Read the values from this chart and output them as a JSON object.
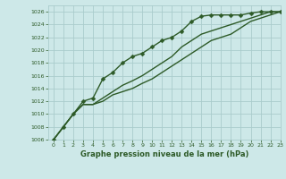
{
  "title": "Graphe pression niveau de la mer (hPa)",
  "bg_color": "#cde8e8",
  "grid_color": "#aacccc",
  "line_color": "#2d5a27",
  "xlim": [
    -0.5,
    23
  ],
  "ylim": [
    1006,
    1027
  ],
  "yticks": [
    1006,
    1008,
    1010,
    1012,
    1014,
    1016,
    1018,
    1020,
    1022,
    1024,
    1026
  ],
  "xticks": [
    0,
    1,
    2,
    3,
    4,
    5,
    6,
    7,
    8,
    9,
    10,
    11,
    12,
    13,
    14,
    15,
    16,
    17,
    18,
    19,
    20,
    21,
    22,
    23
  ],
  "series1_x": [
    0,
    1,
    2,
    3,
    4,
    5,
    6,
    7,
    8,
    9,
    10,
    11,
    12,
    13,
    14,
    15,
    16,
    17,
    18,
    19,
    20,
    21,
    22,
    23
  ],
  "series1_y": [
    1006,
    1008,
    1010,
    1012,
    1012.5,
    1015.5,
    1016.5,
    1018,
    1019,
    1019.5,
    1020.5,
    1021.5,
    1022,
    1023,
    1024.5,
    1025.3,
    1025.5,
    1025.5,
    1025.5,
    1025.5,
    1025.8,
    1026,
    1026,
    1026
  ],
  "series2_x": [
    0,
    1,
    2,
    3,
    4,
    5,
    6,
    7,
    8,
    9,
    10,
    11,
    12,
    13,
    14,
    15,
    16,
    17,
    18,
    19,
    20,
    21,
    22,
    23
  ],
  "series2_y": [
    1006,
    1008,
    1010,
    1011.5,
    1011.5,
    1012.5,
    1013.5,
    1014.5,
    1015.2,
    1016,
    1017,
    1018,
    1019,
    1020.5,
    1021.5,
    1022.5,
    1023,
    1023.5,
    1024,
    1024.5,
    1025,
    1025.5,
    1026,
    1026
  ],
  "series3_x": [
    0,
    1,
    2,
    3,
    4,
    5,
    6,
    7,
    8,
    9,
    10,
    11,
    12,
    13,
    14,
    15,
    16,
    17,
    18,
    19,
    20,
    21,
    22,
    23
  ],
  "series3_y": [
    1006,
    1008,
    1010,
    1011.5,
    1011.5,
    1012,
    1013,
    1013.5,
    1014,
    1014.8,
    1015.5,
    1016.5,
    1017.5,
    1018.5,
    1019.5,
    1020.5,
    1021.5,
    1022,
    1022.5,
    1023.5,
    1024.5,
    1025,
    1025.5,
    1026
  ],
  "marker_size": 2.5,
  "line_width": 1.0
}
